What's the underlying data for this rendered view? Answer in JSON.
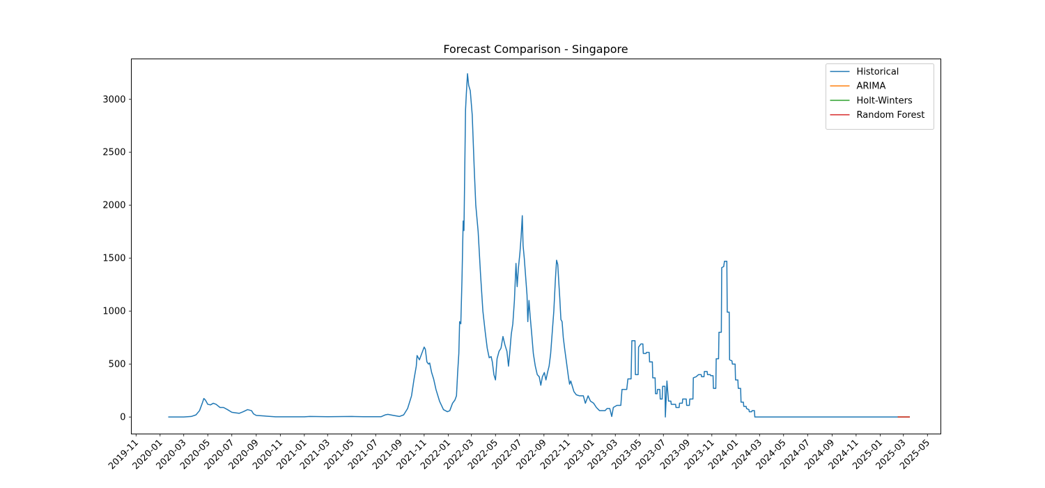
{
  "chart_data": {
    "type": "line",
    "title": "Forecast Comparison - Singapore",
    "xlabel": "",
    "ylabel": "",
    "x_range": [
      "2019-10-20",
      "2025-06-04"
    ],
    "ylim": [
      -160,
      3380
    ],
    "y_ticks": [
      0,
      500,
      1000,
      1500,
      2000,
      2500,
      3000
    ],
    "x_ticks": [
      "2019-11",
      "2020-01",
      "2020-03",
      "2020-05",
      "2020-07",
      "2020-09",
      "2020-11",
      "2021-01",
      "2021-03",
      "2021-05",
      "2021-07",
      "2021-09",
      "2021-11",
      "2022-01",
      "2022-03",
      "2022-05",
      "2022-07",
      "2022-09",
      "2022-11",
      "2023-01",
      "2023-03",
      "2023-05",
      "2023-07",
      "2023-09",
      "2023-11",
      "2024-01",
      "2024-03",
      "2024-05",
      "2024-07",
      "2024-09",
      "2024-11",
      "2025-01",
      "2025-03",
      "2025-05"
    ],
    "grid": false,
    "legend_position": "top-right",
    "series": [
      {
        "name": "Historical",
        "color": "#1f77b4",
        "points": [
          [
            "2020-01-23",
            0
          ],
          [
            "2020-03-01",
            0
          ],
          [
            "2020-03-20",
            5
          ],
          [
            "2020-04-01",
            20
          ],
          [
            "2020-04-10",
            60
          ],
          [
            "2020-04-17",
            130
          ],
          [
            "2020-04-21",
            175
          ],
          [
            "2020-04-25",
            160
          ],
          [
            "2020-05-01",
            120
          ],
          [
            "2020-05-08",
            115
          ],
          [
            "2020-05-15",
            130
          ],
          [
            "2020-05-22",
            120
          ],
          [
            "2020-06-01",
            90
          ],
          [
            "2020-06-10",
            90
          ],
          [
            "2020-06-20",
            70
          ],
          [
            "2020-07-01",
            45
          ],
          [
            "2020-07-10",
            40
          ],
          [
            "2020-07-20",
            35
          ],
          [
            "2020-07-30",
            50
          ],
          [
            "2020-08-10",
            70
          ],
          [
            "2020-08-20",
            60
          ],
          [
            "2020-08-25",
            30
          ],
          [
            "2020-09-01",
            15
          ],
          [
            "2020-09-20",
            10
          ],
          [
            "2020-10-20",
            2
          ],
          [
            "2021-01-01",
            2
          ],
          [
            "2021-01-15",
            5
          ],
          [
            "2021-03-01",
            3
          ],
          [
            "2021-05-01",
            5
          ],
          [
            "2021-06-01",
            3
          ],
          [
            "2021-07-15",
            3
          ],
          [
            "2021-07-25",
            20
          ],
          [
            "2021-08-01",
            25
          ],
          [
            "2021-08-15",
            15
          ],
          [
            "2021-08-30",
            5
          ],
          [
            "2021-09-10",
            20
          ],
          [
            "2021-09-20",
            80
          ],
          [
            "2021-09-30",
            200
          ],
          [
            "2021-10-06",
            350
          ],
          [
            "2021-10-12",
            480
          ],
          [
            "2021-10-14",
            580
          ],
          [
            "2021-10-20",
            540
          ],
          [
            "2021-10-26",
            600
          ],
          [
            "2021-11-01",
            660
          ],
          [
            "2021-11-04",
            640
          ],
          [
            "2021-11-08",
            520
          ],
          [
            "2021-11-12",
            500
          ],
          [
            "2021-11-15",
            510
          ],
          [
            "2021-11-20",
            420
          ],
          [
            "2021-11-25",
            360
          ],
          [
            "2021-12-01",
            260
          ],
          [
            "2021-12-10",
            150
          ],
          [
            "2021-12-20",
            70
          ],
          [
            "2021-12-30",
            50
          ],
          [
            "2022-01-05",
            60
          ],
          [
            "2022-01-12",
            130
          ],
          [
            "2022-01-18",
            160
          ],
          [
            "2022-01-22",
            200
          ],
          [
            "2022-01-25",
            420
          ],
          [
            "2022-01-28",
            600
          ],
          [
            "2022-01-30",
            900
          ],
          [
            "2022-02-02",
            880
          ],
          [
            "2022-02-05",
            1300
          ],
          [
            "2022-02-08",
            1850
          ],
          [
            "2022-02-10",
            1760
          ],
          [
            "2022-02-14",
            2900
          ],
          [
            "2022-02-16",
            3050
          ],
          [
            "2022-02-19",
            3240
          ],
          [
            "2022-02-22",
            3130
          ],
          [
            "2022-02-26",
            3080
          ],
          [
            "2022-03-03",
            2850
          ],
          [
            "2022-03-08",
            2350
          ],
          [
            "2022-03-12",
            2000
          ],
          [
            "2022-03-18",
            1750
          ],
          [
            "2022-03-24",
            1350
          ],
          [
            "2022-03-30",
            1000
          ],
          [
            "2022-04-05",
            800
          ],
          [
            "2022-04-10",
            650
          ],
          [
            "2022-04-15",
            560
          ],
          [
            "2022-04-20",
            570
          ],
          [
            "2022-04-23",
            520
          ],
          [
            "2022-04-27",
            400
          ],
          [
            "2022-05-01",
            350
          ],
          [
            "2022-05-05",
            550
          ],
          [
            "2022-05-10",
            620
          ],
          [
            "2022-05-15",
            650
          ],
          [
            "2022-05-20",
            760
          ],
          [
            "2022-05-25",
            680
          ],
          [
            "2022-05-30",
            620
          ],
          [
            "2022-06-03",
            480
          ],
          [
            "2022-06-06",
            600
          ],
          [
            "2022-06-10",
            780
          ],
          [
            "2022-06-14",
            880
          ],
          [
            "2022-06-18",
            1100
          ],
          [
            "2022-06-22",
            1450
          ],
          [
            "2022-06-25",
            1230
          ],
          [
            "2022-06-28",
            1400
          ],
          [
            "2022-07-02",
            1550
          ],
          [
            "2022-07-05",
            1700
          ],
          [
            "2022-07-08",
            1900
          ],
          [
            "2022-07-10",
            1620
          ],
          [
            "2022-07-13",
            1500
          ],
          [
            "2022-07-17",
            1300
          ],
          [
            "2022-07-20",
            1150
          ],
          [
            "2022-07-22",
            900
          ],
          [
            "2022-07-25",
            1100
          ],
          [
            "2022-07-28",
            950
          ],
          [
            "2022-08-01",
            780
          ],
          [
            "2022-08-05",
            600
          ],
          [
            "2022-08-10",
            480
          ],
          [
            "2022-08-15",
            400
          ],
          [
            "2022-08-20",
            380
          ],
          [
            "2022-08-24",
            300
          ],
          [
            "2022-08-28",
            380
          ],
          [
            "2022-09-02",
            420
          ],
          [
            "2022-09-06",
            350
          ],
          [
            "2022-09-10",
            420
          ],
          [
            "2022-09-14",
            480
          ],
          [
            "2022-09-18",
            600
          ],
          [
            "2022-09-22",
            800
          ],
          [
            "2022-09-26",
            1000
          ],
          [
            "2022-09-30",
            1300
          ],
          [
            "2022-10-03",
            1480
          ],
          [
            "2022-10-06",
            1440
          ],
          [
            "2022-10-09",
            1250
          ],
          [
            "2022-10-11",
            1130
          ],
          [
            "2022-10-14",
            920
          ],
          [
            "2022-10-17",
            900
          ],
          [
            "2022-10-20",
            750
          ],
          [
            "2022-10-24",
            630
          ],
          [
            "2022-10-28",
            520
          ],
          [
            "2022-11-02",
            380
          ],
          [
            "2022-11-05",
            310
          ],
          [
            "2022-11-08",
            340
          ],
          [
            "2022-11-12",
            290
          ],
          [
            "2022-11-16",
            240
          ],
          [
            "2022-11-22",
            210
          ],
          [
            "2022-11-30",
            200
          ],
          [
            "2022-12-10",
            200
          ],
          [
            "2022-12-15",
            130
          ],
          [
            "2022-12-22",
            200
          ],
          [
            "2022-12-28",
            150
          ],
          [
            "2023-01-05",
            130
          ],
          [
            "2023-01-12",
            90
          ],
          [
            "2023-01-20",
            60
          ],
          [
            "2023-01-28",
            60
          ],
          [
            "2023-02-03",
            60
          ],
          [
            "2023-02-08",
            80
          ],
          [
            "2023-02-15",
            80
          ],
          [
            "2023-02-20",
            5
          ],
          [
            "2023-02-24",
            90
          ],
          [
            "2023-03-05",
            110
          ],
          [
            "2023-03-15",
            110
          ],
          [
            "2023-03-18",
            260
          ],
          [
            "2023-03-30",
            260
          ],
          [
            "2023-04-02",
            360
          ],
          [
            "2023-04-10",
            360
          ],
          [
            "2023-04-12",
            720
          ],
          [
            "2023-04-20",
            720
          ],
          [
            "2023-04-21",
            400
          ],
          [
            "2023-04-28",
            400
          ],
          [
            "2023-04-29",
            660
          ],
          [
            "2023-05-05",
            690
          ],
          [
            "2023-05-10",
            690
          ],
          [
            "2023-05-11",
            600
          ],
          [
            "2023-05-18",
            600
          ],
          [
            "2023-05-19",
            610
          ],
          [
            "2023-05-26",
            610
          ],
          [
            "2023-05-27",
            520
          ],
          [
            "2023-06-03",
            520
          ],
          [
            "2023-06-04",
            370
          ],
          [
            "2023-06-10",
            370
          ],
          [
            "2023-06-11",
            220
          ],
          [
            "2023-06-15",
            220
          ],
          [
            "2023-06-16",
            260
          ],
          [
            "2023-06-22",
            260
          ],
          [
            "2023-06-23",
            170
          ],
          [
            "2023-06-28",
            170
          ],
          [
            "2023-06-29",
            290
          ],
          [
            "2023-07-05",
            290
          ],
          [
            "2023-07-06",
            0
          ],
          [
            "2023-07-10",
            340
          ],
          [
            "2023-07-14",
            150
          ],
          [
            "2023-07-20",
            150
          ],
          [
            "2023-07-21",
            120
          ],
          [
            "2023-08-01",
            120
          ],
          [
            "2023-08-02",
            90
          ],
          [
            "2023-08-10",
            90
          ],
          [
            "2023-08-11",
            130
          ],
          [
            "2023-08-18",
            130
          ],
          [
            "2023-08-19",
            170
          ],
          [
            "2023-08-28",
            170
          ],
          [
            "2023-08-29",
            110
          ],
          [
            "2023-09-05",
            110
          ],
          [
            "2023-09-06",
            170
          ],
          [
            "2023-09-14",
            170
          ],
          [
            "2023-09-15",
            370
          ],
          [
            "2023-09-22",
            380
          ],
          [
            "2023-09-28",
            400
          ],
          [
            "2023-10-05",
            400
          ],
          [
            "2023-10-06",
            380
          ],
          [
            "2023-10-12",
            380
          ],
          [
            "2023-10-13",
            430
          ],
          [
            "2023-10-20",
            430
          ],
          [
            "2023-10-21",
            400
          ],
          [
            "2023-10-28",
            400
          ],
          [
            "2023-10-29",
            390
          ],
          [
            "2023-11-04",
            390
          ],
          [
            "2023-11-05",
            270
          ],
          [
            "2023-11-11",
            270
          ],
          [
            "2023-11-12",
            550
          ],
          [
            "2023-11-18",
            550
          ],
          [
            "2023-11-19",
            800
          ],
          [
            "2023-11-25",
            800
          ],
          [
            "2023-11-26",
            1410
          ],
          [
            "2023-12-01",
            1420
          ],
          [
            "2023-12-03",
            1470
          ],
          [
            "2023-12-09",
            1470
          ],
          [
            "2023-12-10",
            990
          ],
          [
            "2023-12-15",
            990
          ],
          [
            "2023-12-16",
            540
          ],
          [
            "2023-12-22",
            530
          ],
          [
            "2023-12-23",
            500
          ],
          [
            "2023-12-30",
            500
          ],
          [
            "2023-12-31",
            350
          ],
          [
            "2024-01-06",
            350
          ],
          [
            "2024-01-07",
            270
          ],
          [
            "2024-01-13",
            270
          ],
          [
            "2024-01-14",
            140
          ],
          [
            "2024-01-20",
            140
          ],
          [
            "2024-01-21",
            100
          ],
          [
            "2024-01-27",
            100
          ],
          [
            "2024-01-28",
            80
          ],
          [
            "2024-02-03",
            70
          ],
          [
            "2024-02-04",
            50
          ],
          [
            "2024-02-10",
            50
          ],
          [
            "2024-02-11",
            60
          ],
          [
            "2024-02-17",
            60
          ],
          [
            "2024-02-18",
            0
          ],
          [
            "2025-02-15",
            0
          ]
        ]
      },
      {
        "name": "ARIMA",
        "color": "#ff7f0e",
        "points": [
          [
            "2025-02-16",
            0
          ],
          [
            "2025-03-16",
            0
          ]
        ]
      },
      {
        "name": "Holt-Winters",
        "color": "#2ca02c",
        "points": [
          [
            "2025-02-16",
            0
          ],
          [
            "2025-03-16",
            0
          ]
        ]
      },
      {
        "name": "Random Forest",
        "color": "#d62728",
        "points": [
          [
            "2025-02-16",
            0
          ],
          [
            "2025-03-16",
            0
          ]
        ]
      }
    ]
  }
}
